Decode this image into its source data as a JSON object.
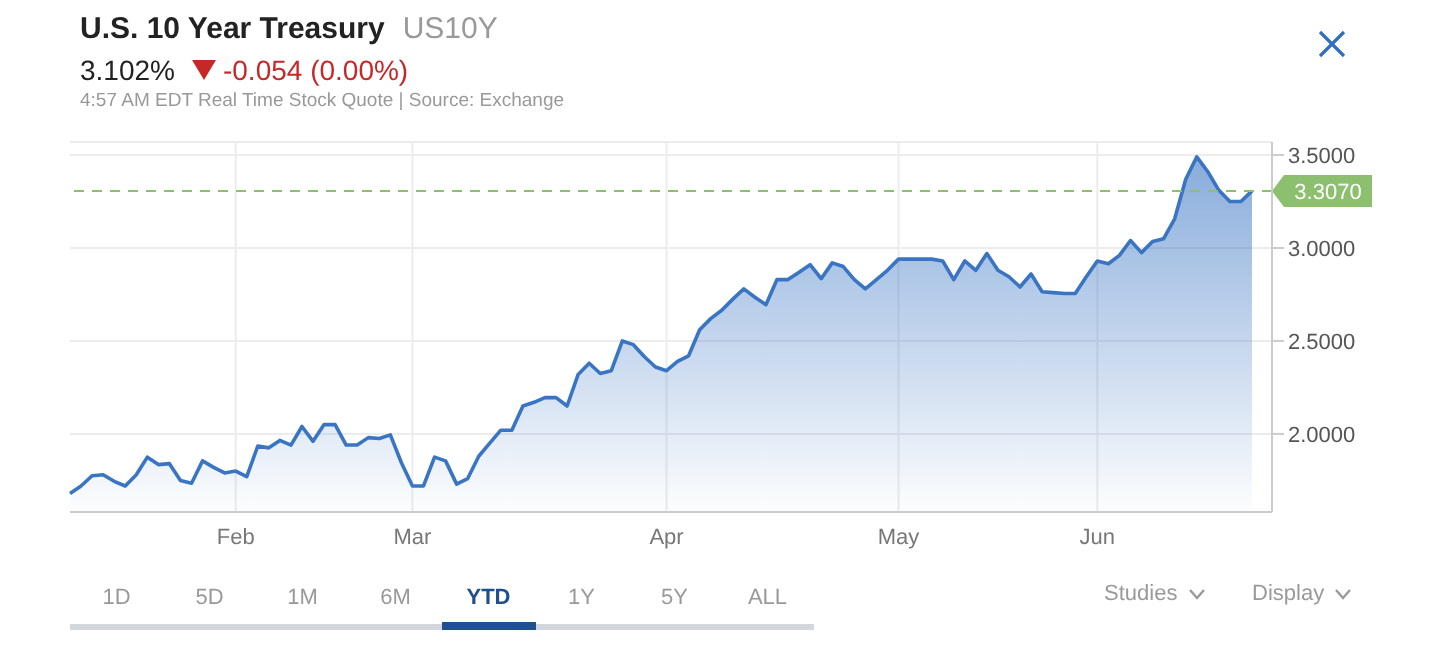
{
  "chart_data": {
    "type": "area",
    "title": "U.S. 10 Year Treasury",
    "subtitle": "US10Y",
    "annotations": [
      "3.102%",
      "-0.054 (0.00%)",
      "4:57 AM EDT Real Time Stock Quote | Source: Exchange",
      "1D",
      "5D",
      "1M",
      "6M",
      "YTD",
      "1Y",
      "5Y",
      "ALL",
      "Studies",
      "Display"
    ],
    "categories": [
      null,
      null,
      null,
      null,
      null,
      null,
      null,
      null,
      null,
      null,
      null,
      null,
      null,
      null,
      null,
      "Feb",
      null,
      null,
      null,
      null,
      null,
      null,
      null,
      null,
      null,
      null,
      null,
      null,
      null,
      null,
      null,
      "Mar",
      null,
      null,
      null,
      null,
      null,
      null,
      null,
      null,
      null,
      null,
      null,
      null,
      null,
      null,
      null,
      null,
      null,
      null,
      null,
      null,
      null,
      null,
      "Apr",
      null,
      null,
      null,
      null,
      null,
      null,
      null,
      null,
      null,
      null,
      null,
      null,
      null,
      null,
      null,
      null,
      null,
      null,
      null,
      null,
      "May",
      null,
      null,
      null,
      null,
      null,
      null,
      null,
      null,
      null,
      null,
      null,
      null,
      null,
      null,
      null,
      null,
      null,
      "Jun",
      null,
      null,
      null,
      null,
      null,
      null,
      null,
      null,
      null,
      null,
      null,
      null,
      null,
      null
    ],
    "values": [
      1.68,
      1.72,
      1.775,
      1.78,
      1.745,
      1.72,
      1.78,
      1.875,
      1.835,
      1.84,
      1.75,
      1.735,
      1.855,
      1.82,
      1.79,
      1.8,
      1.77,
      1.935,
      1.925,
      1.965,
      1.94,
      2.04,
      1.96,
      2.05,
      2.05,
      1.94,
      1.94,
      1.98,
      1.975,
      1.995,
      1.845,
      1.72,
      1.72,
      1.875,
      1.855,
      1.73,
      1.76,
      1.88,
      1.95,
      2.02,
      2.02,
      2.15,
      2.17,
      2.195,
      2.195,
      2.15,
      2.32,
      2.38,
      2.325,
      2.34,
      2.5,
      2.48,
      2.415,
      2.36,
      2.34,
      2.39,
      2.42,
      2.56,
      2.62,
      2.665,
      2.725,
      2.78,
      2.735,
      2.695,
      2.83,
      2.83,
      2.87,
      2.91,
      2.835,
      2.92,
      2.9,
      2.83,
      2.78,
      2.83,
      2.88,
      2.94,
      2.94,
      2.94,
      2.94,
      2.93,
      2.83,
      2.93,
      2.88,
      2.97,
      2.88,
      2.845,
      2.79,
      2.86,
      2.765,
      2.76,
      2.755,
      2.755,
      2.845,
      2.93,
      2.915,
      2.96,
      3.04,
      2.975,
      3.035,
      3.05,
      3.157,
      3.37,
      3.49,
      3.41,
      3.31,
      3.25,
      3.25,
      3.307
    ],
    "color": "#3a75c4",
    "ylim": [
      1.58,
      3.57
    ],
    "yticks": [
      {
        "value": 2,
        "label": "2.0000"
      },
      {
        "value": 2.5,
        "label": "2.5000"
      },
      {
        "value": 3,
        "label": "3.0000"
      },
      {
        "value": 3.5,
        "label": "3.5000"
      }
    ],
    "grid": true,
    "ref_lines": [
      {
        "axis": "y",
        "value": 3.307,
        "label": "3.3070",
        "color": "#8cbf6e",
        "line_style": "dashed"
      }
    ]
  }
}
